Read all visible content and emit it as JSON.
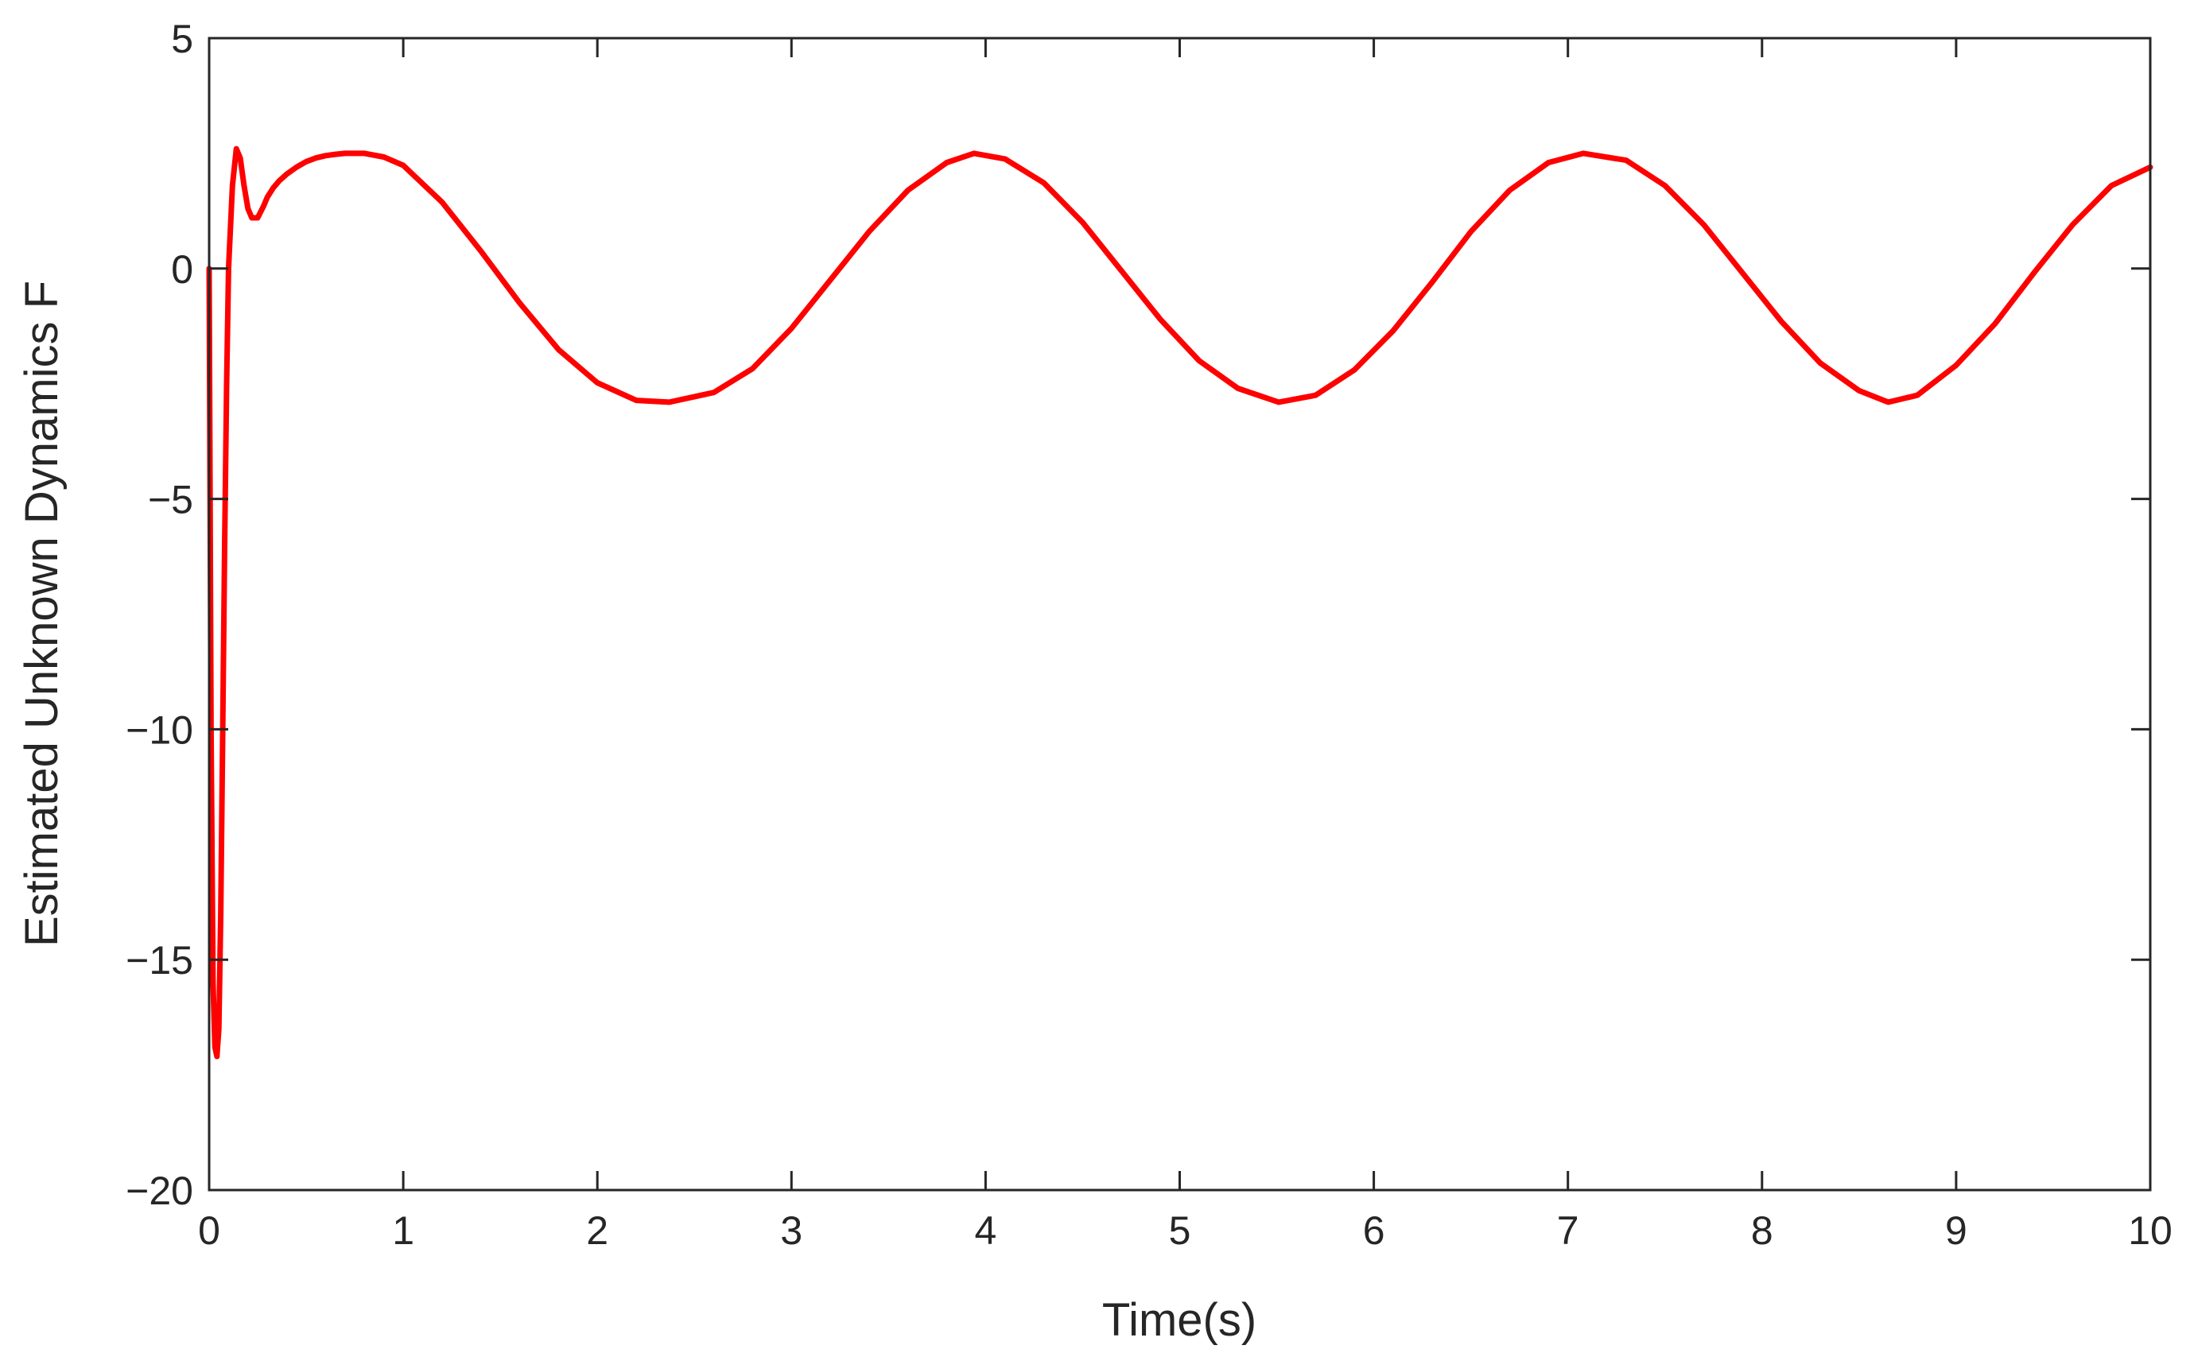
{
  "chart_data": {
    "type": "line",
    "title": "",
    "xlabel": "Time(s)",
    "ylabel": "Estimated Unknown Dynamics F",
    "xlim": [
      0,
      10
    ],
    "ylim": [
      -20,
      5
    ],
    "xticks": [
      0,
      1,
      2,
      3,
      4,
      5,
      6,
      7,
      8,
      9,
      10
    ],
    "yticks": [
      5,
      0,
      -5,
      -10,
      -15,
      -20
    ],
    "grid": false,
    "legend": "none",
    "series": [
      {
        "color": "#ff0000",
        "x": [
          0,
          0.01,
          0.02,
          0.03,
          0.04,
          0.05,
          0.06,
          0.07,
          0.08,
          0.09,
          0.1,
          0.12,
          0.14,
          0.16,
          0.18,
          0.2,
          0.22,
          0.25,
          0.28,
          0.3,
          0.33,
          0.36,
          0.4,
          0.45,
          0.5,
          0.55,
          0.6,
          0.65,
          0.7,
          0.75,
          0.8,
          0.9,
          1.0,
          1.2,
          1.4,
          1.6,
          1.8,
          2.0,
          2.2,
          2.37,
          2.6,
          2.8,
          3.0,
          3.2,
          3.4,
          3.6,
          3.8,
          3.94,
          4.1,
          4.3,
          4.5,
          4.7,
          4.9,
          5.1,
          5.3,
          5.51,
          5.7,
          5.9,
          6.1,
          6.3,
          6.5,
          6.7,
          6.9,
          7.08,
          7.3,
          7.5,
          7.7,
          7.9,
          8.1,
          8.3,
          8.5,
          8.65,
          8.8,
          9.0,
          9.2,
          9.4,
          9.6,
          9.8,
          10.0
        ],
        "y": [
          0,
          -10,
          -15.5,
          -16.9,
          -17.1,
          -16.5,
          -14,
          -10,
          -6,
          -2.5,
          0,
          1.8,
          2.6,
          2.4,
          1.8,
          1.3,
          1.1,
          1.1,
          1.35,
          1.55,
          1.75,
          1.9,
          2.05,
          2.2,
          2.32,
          2.4,
          2.45,
          2.48,
          2.5,
          2.5,
          2.5,
          2.42,
          2.24,
          1.44,
          0.38,
          -0.75,
          -1.76,
          -2.48,
          -2.86,
          -2.9,
          -2.69,
          -2.17,
          -1.3,
          -0.25,
          0.8,
          1.7,
          2.3,
          2.5,
          2.38,
          1.86,
          1.0,
          -0.05,
          -1.1,
          -2.0,
          -2.6,
          -2.9,
          -2.75,
          -2.2,
          -1.35,
          -0.3,
          0.8,
          1.7,
          2.3,
          2.5,
          2.35,
          1.8,
          0.95,
          -0.1,
          -1.15,
          -2.05,
          -2.65,
          -2.9,
          -2.75,
          -2.1,
          -1.2,
          -0.1,
          0.95,
          1.8,
          2.2
        ]
      }
    ]
  }
}
